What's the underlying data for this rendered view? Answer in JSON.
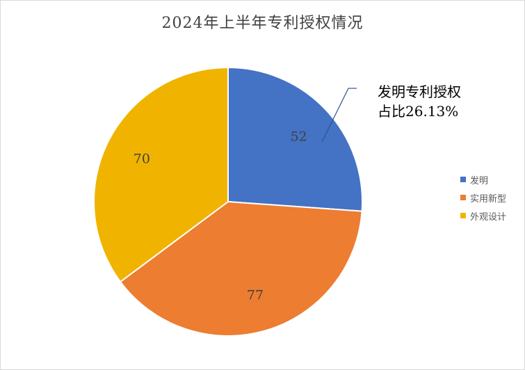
{
  "chart_data": {
    "type": "pie",
    "title": "2024年上半年专利授权情况",
    "categories": [
      "发明",
      "实用新型",
      "外观设计"
    ],
    "values": [
      52,
      77,
      70
    ],
    "colors": [
      "#4472c4",
      "#ed7d31",
      "#f0b400"
    ],
    "data_labels": [
      "52",
      "77",
      "70"
    ],
    "legend_position": "right",
    "annotation": {
      "line1": "发明专利授权",
      "line2": "占比26.13%"
    }
  }
}
